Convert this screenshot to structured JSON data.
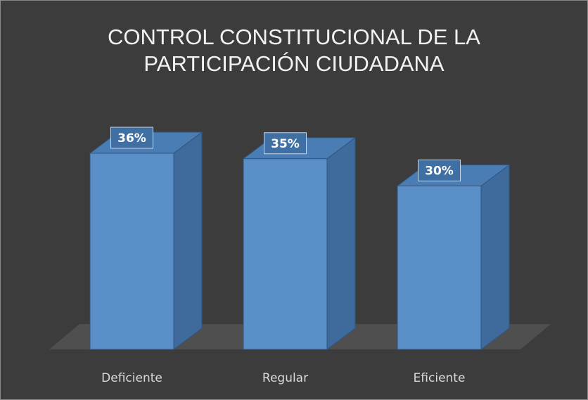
{
  "chart_data": {
    "type": "bar3d",
    "title": "CONTROL CONSTITUCIONAL DE LA PARTICIPACIÓN CIUDADANA",
    "categories": [
      "Deficiente",
      "Regular",
      "Eficiente"
    ],
    "values": [
      36,
      35,
      30
    ],
    "value_labels": [
      "36%",
      "35%",
      "30%"
    ],
    "color": "#5b8fc7"
  }
}
